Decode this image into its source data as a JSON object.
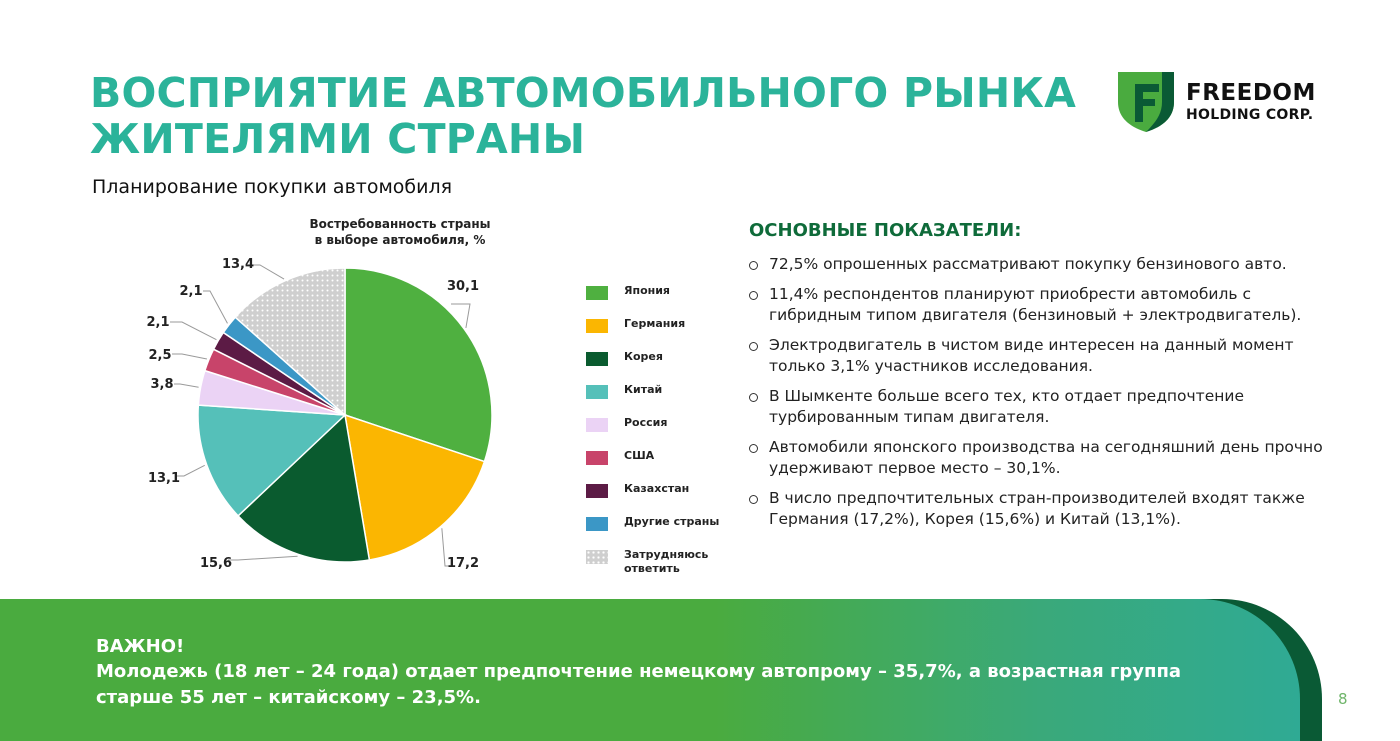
{
  "header": {
    "title_line1": "ВОСПРИЯТИЕ АВТОМОБИЛЬНОГО РЫНКА",
    "title_line2": "ЖИТЕЛЯМИ СТРАНЫ",
    "subtitle": "Планирование покупки автомобиля"
  },
  "logo": {
    "line1": "FREEDOM",
    "line2": "HOLDING CORP.",
    "colors": {
      "light": "#4aab3f",
      "dark": "#0a5a35"
    }
  },
  "chart_data": {
    "type": "pie",
    "title_line1": "Востребованность страны",
    "title_line2": "в выборе автомобиля, %",
    "categories": [
      "Япония",
      "Германия",
      "Корея",
      "Китай",
      "Россия",
      "США",
      "Казахстан",
      "Другие страны",
      "Затрудняюсь ответить"
    ],
    "values": [
      30.1,
      17.2,
      15.6,
      13.1,
      3.8,
      2.5,
      2.1,
      2.1,
      13.4
    ],
    "labels": [
      "30,1",
      "17,2",
      "15,6",
      "13,1",
      "3,8",
      "2,5",
      "2,1",
      "2,1",
      "13,4"
    ],
    "colors": [
      "#4fb040",
      "#fbb601",
      "#0a5b2f",
      "#55c0b9",
      "#ebd3f5",
      "#c8446a",
      "#5c1b45",
      "#3b97c6",
      "#c9c9c9"
    ],
    "patterns": [
      "solid",
      "solid",
      "solid",
      "solid",
      "solid",
      "solid",
      "solid",
      "solid",
      "dots"
    ],
    "legend_placement": "right"
  },
  "indicators": {
    "title": "ОСНОВНЫЕ ПОКАЗАТЕЛИ:",
    "items": [
      "72,5% опрошенных рассматривают покупку бензинового авто.",
      "11,4% респондентов планируют приобрести автомобиль с гибридным типом двигателя (бензиновый + электродвигатель).",
      "Электродвигатель в чистом виде интересен на данный момент только 3,1% участников исследования.",
      "В Шымкенте больше всего тех, кто отдает предпочтение турбированным типам двигателя.",
      "Автомобили японского производства на сегодняшний день прочно удерживают первое место – 30,1%.",
      "В число предпочтительных стран-производителей входят также Германия (17,2%), Корея (15,6%) и Китай (13,1%)."
    ]
  },
  "banner": {
    "heading": "ВАЖНО!",
    "text": "Молодежь (18 лет – 24 года) отдает предпочтение немецкому автопрому – 35,7%, а возрастная группа старше 55 лет – китайскому – 23,5%."
  },
  "page": {
    "number": "8"
  },
  "colors": {
    "title": "#2bb39a",
    "indicators_title": "#0f6b3a"
  }
}
